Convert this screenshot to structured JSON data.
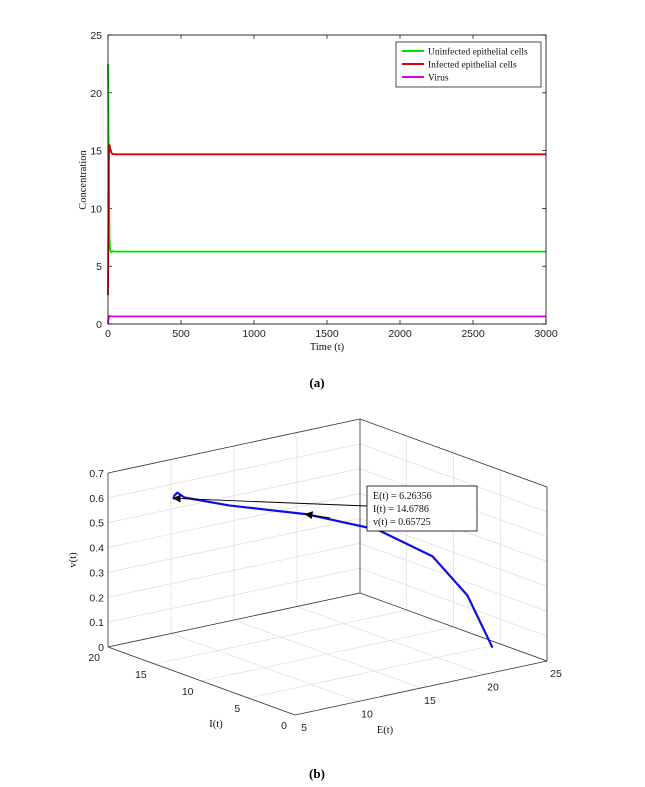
{
  "chart_data": [
    {
      "type": "line",
      "caption": "(a)",
      "xlabel": "Time (t)",
      "ylabel": "Concentration",
      "xlim": [
        0,
        3000
      ],
      "ylim": [
        0,
        25
      ],
      "xticks": [
        0,
        500,
        1000,
        1500,
        2000,
        2500,
        3000
      ],
      "yticks": [
        0,
        5,
        10,
        15,
        20,
        25
      ],
      "legend_position": "top-right",
      "series": [
        {
          "name": "Uninfected epithelial cells",
          "color": "#00e000",
          "x": [
            0,
            5,
            10,
            15,
            20,
            30,
            50,
            100,
            3000
          ],
          "y": [
            22.5,
            14,
            7.5,
            6.4,
            6.2,
            6.3,
            6.26,
            6.26,
            6.26
          ]
        },
        {
          "name": "Infected epithelial cells",
          "color": "#e00000",
          "x": [
            0,
            3,
            6,
            10,
            15,
            20,
            30,
            50,
            100,
            3000
          ],
          "y": [
            2.5,
            9,
            14.5,
            15.5,
            15.2,
            14.9,
            14.7,
            14.68,
            14.68,
            14.68
          ]
        },
        {
          "name": "Virus",
          "color": "#e000e0",
          "x": [
            0,
            3,
            8,
            15,
            3000
          ],
          "y": [
            0.05,
            0.4,
            0.7,
            0.66,
            0.66
          ]
        }
      ]
    },
    {
      "type": "line3d",
      "caption": "(b)",
      "xlabel": "E(t)",
      "ylabel": "I(t)",
      "zlabel": "v(t)",
      "xlim": [
        5,
        25
      ],
      "ylim": [
        0,
        20
      ],
      "zlim": [
        0,
        0.7
      ],
      "xticks": [
        5,
        10,
        15,
        20,
        25
      ],
      "yticks": [
        0,
        5,
        10,
        15,
        20
      ],
      "zticks": [
        0,
        0.1,
        0.2,
        0.3,
        0.4,
        0.5,
        0.6,
        0.7
      ],
      "trajectory_color": "#1010e0",
      "trajectory": [
        [
          22.5,
          2.5,
          0.05
        ],
        [
          21.5,
          3.8,
          0.25
        ],
        [
          20.0,
          5.5,
          0.4
        ],
        [
          17.5,
          8.0,
          0.5
        ],
        [
          14.0,
          11.0,
          0.56
        ],
        [
          10.0,
          13.8,
          0.6
        ],
        [
          7.5,
          15.2,
          0.64
        ],
        [
          6.8,
          15.0,
          0.67
        ],
        [
          6.4,
          14.8,
          0.665
        ],
        [
          6.26,
          14.68,
          0.657
        ]
      ],
      "annotation": {
        "point": [
          6.26356,
          14.6786,
          0.65725
        ],
        "lines": [
          "E(t) = 6.26356",
          "I(t) = 14.6786",
          "v(t) = 0.65725"
        ]
      }
    }
  ]
}
